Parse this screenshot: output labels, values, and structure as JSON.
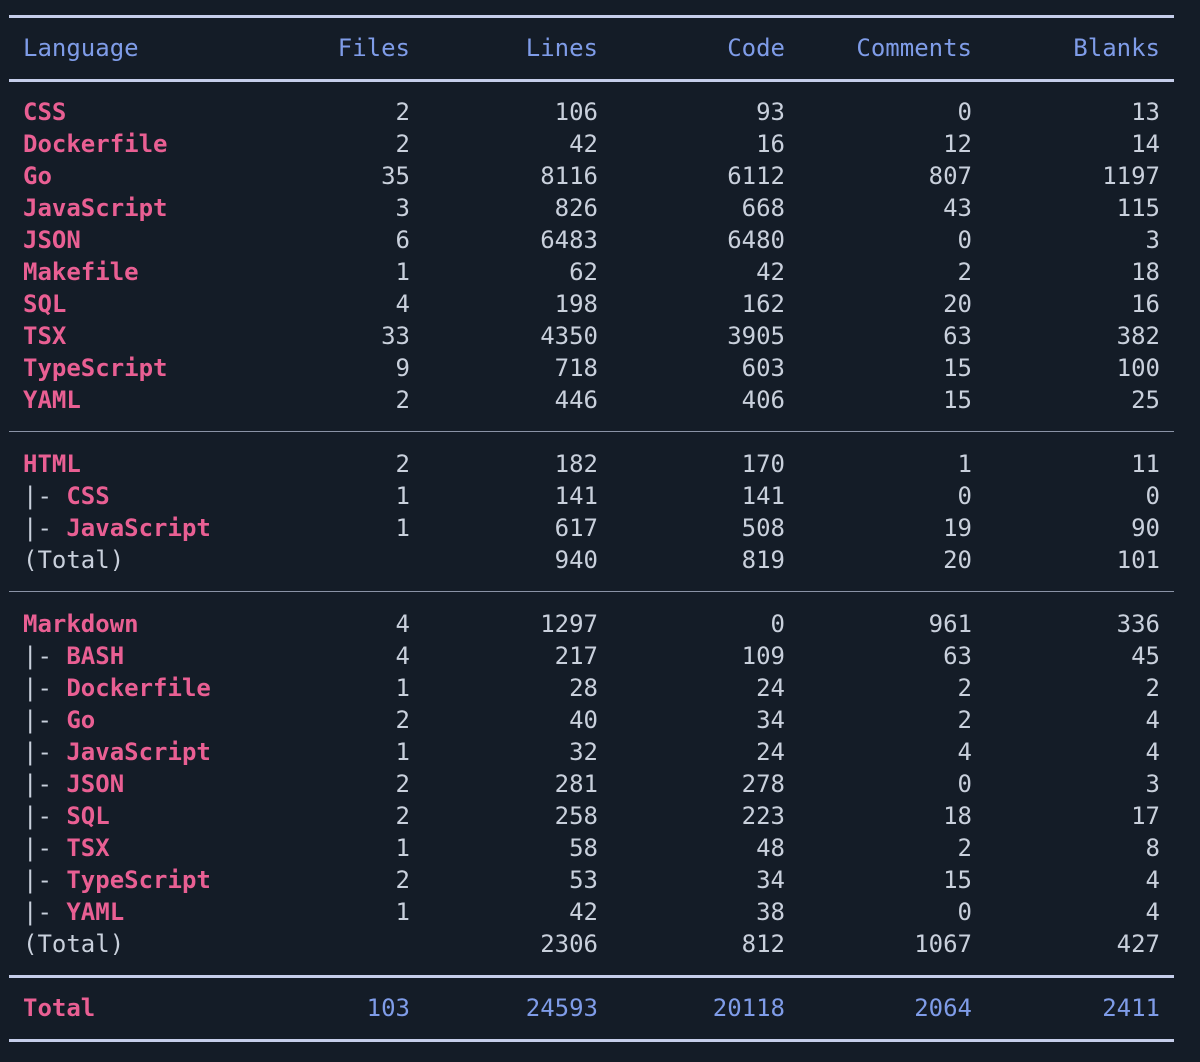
{
  "colors": {
    "background": "#141c27",
    "language": "#e95f93",
    "header": "#7f9ce8",
    "text": "#c9d0dc"
  },
  "headers": [
    "Language",
    "Files",
    "Lines",
    "Code",
    "Comments",
    "Blanks"
  ],
  "sections": [
    {
      "rows": [
        {
          "prefix": "",
          "name": "CSS",
          "values": [
            "2",
            "106",
            "93",
            "0",
            "13"
          ]
        },
        {
          "prefix": "",
          "name": "Dockerfile",
          "values": [
            "2",
            "42",
            "16",
            "12",
            "14"
          ]
        },
        {
          "prefix": "",
          "name": "Go",
          "values": [
            "35",
            "8116",
            "6112",
            "807",
            "1197"
          ]
        },
        {
          "prefix": "",
          "name": "JavaScript",
          "values": [
            "3",
            "826",
            "668",
            "43",
            "115"
          ]
        },
        {
          "prefix": "",
          "name": "JSON",
          "values": [
            "6",
            "6483",
            "6480",
            "0",
            "3"
          ]
        },
        {
          "prefix": "",
          "name": "Makefile",
          "values": [
            "1",
            "62",
            "42",
            "2",
            "18"
          ]
        },
        {
          "prefix": "",
          "name": "SQL",
          "values": [
            "4",
            "198",
            "162",
            "20",
            "16"
          ]
        },
        {
          "prefix": "",
          "name": "TSX",
          "values": [
            "33",
            "4350",
            "3905",
            "63",
            "382"
          ]
        },
        {
          "prefix": "",
          "name": "TypeScript",
          "values": [
            "9",
            "718",
            "603",
            "15",
            "100"
          ]
        },
        {
          "prefix": "",
          "name": "YAML",
          "values": [
            "2",
            "446",
            "406",
            "15",
            "25"
          ]
        }
      ]
    },
    {
      "rows": [
        {
          "prefix": "",
          "name": "HTML",
          "values": [
            "2",
            "182",
            "170",
            "1",
            "11"
          ]
        },
        {
          "prefix": "|- ",
          "name": "CSS",
          "values": [
            "1",
            "141",
            "141",
            "0",
            "0"
          ]
        },
        {
          "prefix": "|- ",
          "name": "JavaScript",
          "values": [
            "1",
            "617",
            "508",
            "19",
            "90"
          ]
        },
        {
          "prefix": "(Total)",
          "name": "",
          "values": [
            "",
            "940",
            "819",
            "20",
            "101"
          ]
        }
      ]
    },
    {
      "rows": [
        {
          "prefix": "",
          "name": "Markdown",
          "values": [
            "4",
            "1297",
            "0",
            "961",
            "336"
          ]
        },
        {
          "prefix": "|- ",
          "name": "BASH",
          "values": [
            "4",
            "217",
            "109",
            "63",
            "45"
          ]
        },
        {
          "prefix": "|- ",
          "name": "Dockerfile",
          "values": [
            "1",
            "28",
            "24",
            "2",
            "2"
          ]
        },
        {
          "prefix": "|- ",
          "name": "Go",
          "values": [
            "2",
            "40",
            "34",
            "2",
            "4"
          ]
        },
        {
          "prefix": "|- ",
          "name": "JavaScript",
          "values": [
            "1",
            "32",
            "24",
            "4",
            "4"
          ]
        },
        {
          "prefix": "|- ",
          "name": "JSON",
          "values": [
            "2",
            "281",
            "278",
            "0",
            "3"
          ]
        },
        {
          "prefix": "|- ",
          "name": "SQL",
          "values": [
            "2",
            "258",
            "223",
            "18",
            "17"
          ]
        },
        {
          "prefix": "|- ",
          "name": "TSX",
          "values": [
            "1",
            "58",
            "48",
            "2",
            "8"
          ]
        },
        {
          "prefix": "|- ",
          "name": "TypeScript",
          "values": [
            "2",
            "53",
            "34",
            "15",
            "4"
          ]
        },
        {
          "prefix": "|- ",
          "name": "YAML",
          "values": [
            "1",
            "42",
            "38",
            "0",
            "4"
          ]
        },
        {
          "prefix": "(Total)",
          "name": "",
          "values": [
            "",
            "2306",
            "812",
            "1067",
            "427"
          ]
        }
      ]
    }
  ],
  "total": {
    "label": "Total",
    "values": [
      "103",
      "24593",
      "20118",
      "2064",
      "2411"
    ]
  }
}
